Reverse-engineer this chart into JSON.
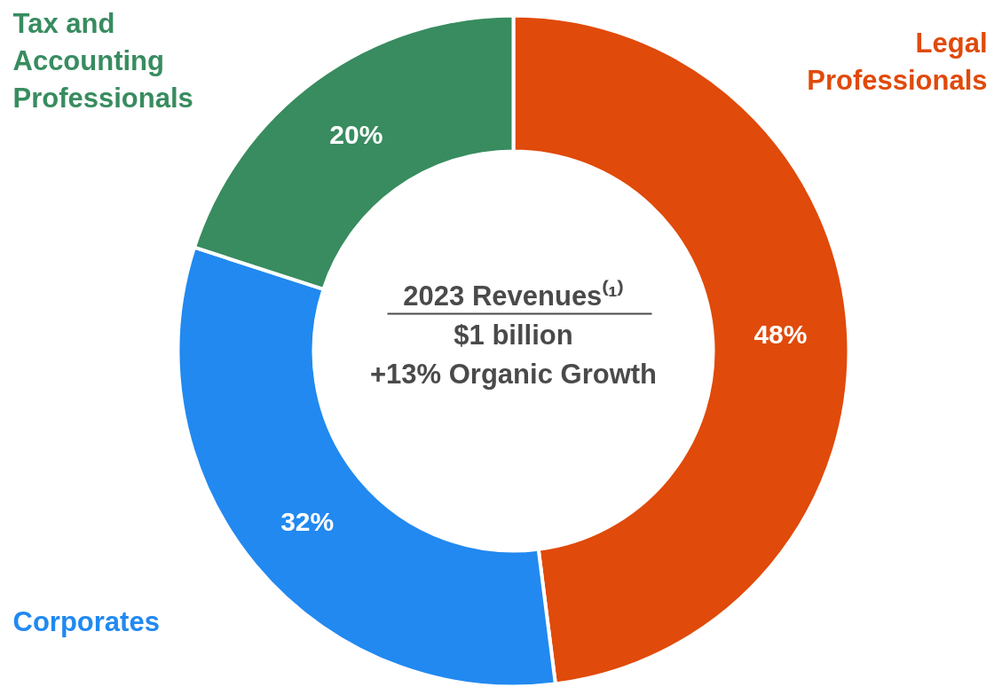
{
  "chart_data": {
    "type": "donut",
    "categories": [
      "Legal\nProfessionals",
      "Corporates",
      "Tax and\nAccounting\nProfessionals"
    ],
    "values": [
      48,
      32,
      20
    ],
    "colors": [
      "#e04a0a",
      "#2189f0",
      "#388c5f"
    ],
    "value_labels": [
      "48%",
      "32%",
      "20%"
    ],
    "annotations": [
      "2023 Revenues⁽¹⁾",
      "$1 billion",
      "+13% Organic Growth"
    ]
  }
}
